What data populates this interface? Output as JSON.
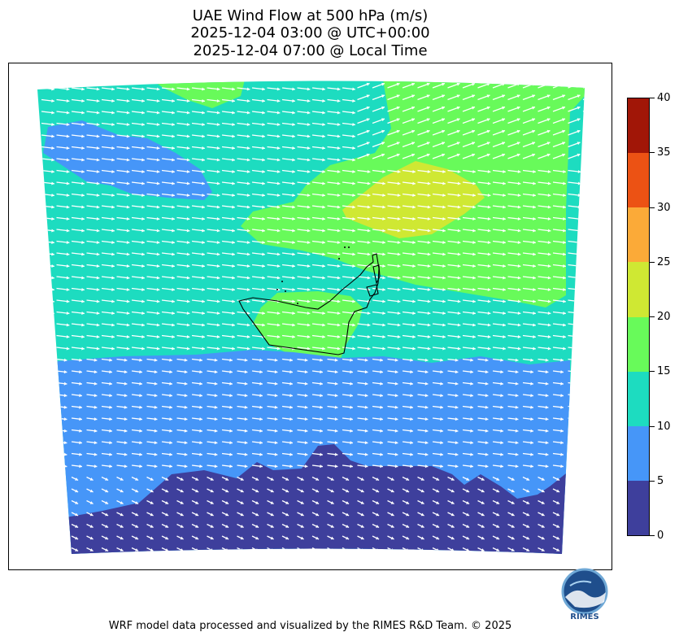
{
  "header": {
    "title": "UAE Wind Flow at 500 hPa (m/s)",
    "utc_time": "2025-12-04 03:00 @ UTC+00:00",
    "local_time": "2025-12-04 07:00 @ Local Time"
  },
  "colorbar": {
    "ticks": [
      "0",
      "5",
      "10",
      "15",
      "20",
      "25",
      "30",
      "35",
      "40"
    ],
    "bins": [
      {
        "range": "0-5",
        "color": "#3e3f9c"
      },
      {
        "range": "5-10",
        "color": "#4696f8"
      },
      {
        "range": "10-15",
        "color": "#1ddcc0"
      },
      {
        "range": "15-20",
        "color": "#68fa5a"
      },
      {
        "range": "20-25",
        "color": "#cfe833"
      },
      {
        "range": "25-30",
        "color": "#fbaa38"
      },
      {
        "range": "30-35",
        "color": "#ec5214"
      },
      {
        "range": "35-40",
        "color": "#a11607"
      }
    ]
  },
  "logo": {
    "text": "RIMES"
  },
  "footer": {
    "credit": "WRF model data processed and visualized by the RIMES R&D Team. © 2025"
  },
  "map": {
    "arrow_color": "#ffffff",
    "border_color": "#000000",
    "wind_direction": "east / east-southeast"
  }
}
